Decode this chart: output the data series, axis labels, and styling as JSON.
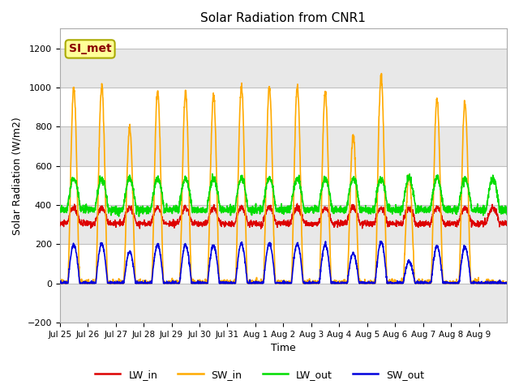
{
  "title": "Solar Radiation from CNR1",
  "xlabel": "Time",
  "ylabel": "Solar Radiation (W/m2)",
  "ylim": [
    -200,
    1300
  ],
  "yticks": [
    -200,
    0,
    200,
    400,
    600,
    800,
    1000,
    1200
  ],
  "background_color": "#ffffff",
  "plot_bg_color": "#ffffff",
  "grid_color": "#d8d8d8",
  "date_labels": [
    "Jul 25",
    "Jul 26",
    "Jul 27",
    "Jul 28",
    "Jul 29",
    "Jul 30",
    "Jul 31",
    "Aug 1",
    "Aug 2",
    "Aug 3",
    "Aug 4",
    "Aug 5",
    "Aug 6",
    "Aug 7",
    "Aug 8",
    "Aug 9"
  ],
  "legend_label": "SI_met",
  "sw_in_peaks": [
    1000,
    1010,
    800,
    975,
    975,
    960,
    1005,
    1005,
    1000,
    980,
    760,
    1060,
    550,
    940,
    925,
    0
  ],
  "lw_color": "#dd0000",
  "sw_color": "#ffaa00",
  "lw_out_color": "#00dd00",
  "sw_out_color": "#0000dd"
}
